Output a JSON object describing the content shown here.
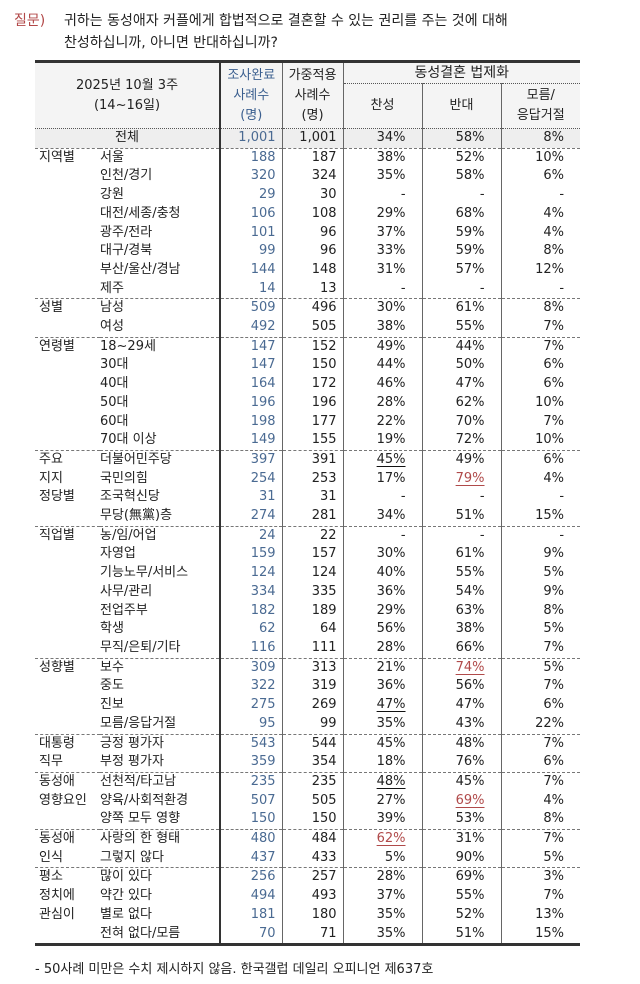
{
  "question": {
    "label": "질문)",
    "line1": "귀하는 동성애자 커플에게 합법적으로 결혼할 수 있는 권리를 주는 것에 대해",
    "line2": "찬성하십니까, 아니면 반대하십니까?"
  },
  "header": {
    "period_line1": "2025년 10월 3주",
    "period_line2": "(14~16일)",
    "col1": [
      "조사완료",
      "사례수",
      "(명)"
    ],
    "col2": [
      "가중적용",
      "사례수",
      "(명)"
    ],
    "group": "동성결혼 법제화",
    "favor": "찬성",
    "oppose": "반대",
    "dk": [
      "모름/",
      "응답거절"
    ]
  },
  "colors": {
    "sample_count": "#4a6a92",
    "question_label": "#b24848",
    "highlight_red": "#b04a4a"
  },
  "total": {
    "label": "전체",
    "n": "1,001",
    "w": "1,001",
    "favor": "34%",
    "oppose": "58%",
    "dk": "8%"
  },
  "groups": [
    {
      "label": [
        "지역별"
      ],
      "rows": [
        {
          "label": "서울",
          "n": "188",
          "w": "187",
          "favor": "38%",
          "oppose": "52%",
          "dk": "10%"
        },
        {
          "label": "인천/경기",
          "n": "320",
          "w": "324",
          "favor": "35%",
          "oppose": "58%",
          "dk": "6%"
        },
        {
          "label": "강원",
          "n": "29",
          "w": "30",
          "favor": "-",
          "oppose": "-",
          "dk": "-"
        },
        {
          "label": "대전/세종/충청",
          "n": "106",
          "w": "108",
          "favor": "29%",
          "oppose": "68%",
          "dk": "4%"
        },
        {
          "label": "광주/전라",
          "n": "101",
          "w": "96",
          "favor": "37%",
          "oppose": "59%",
          "dk": "4%"
        },
        {
          "label": "대구/경북",
          "n": "99",
          "w": "96",
          "favor": "33%",
          "oppose": "59%",
          "dk": "8%"
        },
        {
          "label": "부산/울산/경남",
          "n": "144",
          "w": "148",
          "favor": "31%",
          "oppose": "57%",
          "dk": "12%"
        },
        {
          "label": "제주",
          "n": "14",
          "w": "13",
          "favor": "-",
          "oppose": "-",
          "dk": "-"
        }
      ]
    },
    {
      "label": [
        "성별"
      ],
      "rows": [
        {
          "label": "남성",
          "n": "509",
          "w": "496",
          "favor": "30%",
          "oppose": "61%",
          "dk": "8%"
        },
        {
          "label": "여성",
          "n": "492",
          "w": "505",
          "favor": "38%",
          "oppose": "55%",
          "dk": "7%"
        }
      ]
    },
    {
      "label": [
        "연령별"
      ],
      "rows": [
        {
          "label": "18~29세",
          "n": "147",
          "w": "152",
          "favor": "49%",
          "oppose": "44%",
          "dk": "7%"
        },
        {
          "label": "30대",
          "n": "147",
          "w": "150",
          "favor": "44%",
          "oppose": "50%",
          "dk": "6%"
        },
        {
          "label": "40대",
          "n": "164",
          "w": "172",
          "favor": "46%",
          "oppose": "47%",
          "dk": "6%"
        },
        {
          "label": "50대",
          "n": "196",
          "w": "196",
          "favor": "28%",
          "oppose": "62%",
          "dk": "10%"
        },
        {
          "label": "60대",
          "n": "198",
          "w": "177",
          "favor": "22%",
          "oppose": "70%",
          "dk": "7%"
        },
        {
          "label": "70대 이상",
          "n": "149",
          "w": "155",
          "favor": "19%",
          "oppose": "72%",
          "dk": "10%"
        }
      ]
    },
    {
      "label": [
        "주요",
        "지지",
        "정당별"
      ],
      "rows": [
        {
          "label": "더불어민주당",
          "n": "397",
          "w": "391",
          "favor": "45%",
          "oppose": "49%",
          "dk": "6%",
          "mark": {
            "favor": "ub"
          }
        },
        {
          "label": "국민의힘",
          "n": "254",
          "w": "253",
          "favor": "17%",
          "oppose": "79%",
          "dk": "4%",
          "mark": {
            "oppose": "ur"
          }
        },
        {
          "label": "조국혁신당",
          "n": "31",
          "w": "31",
          "favor": "-",
          "oppose": "-",
          "dk": "-"
        },
        {
          "label": "무당(無黨)층",
          "n": "274",
          "w": "281",
          "favor": "34%",
          "oppose": "51%",
          "dk": "15%"
        }
      ]
    },
    {
      "label": [
        "직업별"
      ],
      "rows": [
        {
          "label": "농/임/어업",
          "n": "24",
          "w": "22",
          "favor": "-",
          "oppose": "-",
          "dk": "-"
        },
        {
          "label": "자영업",
          "n": "159",
          "w": "157",
          "favor": "30%",
          "oppose": "61%",
          "dk": "9%"
        },
        {
          "label": "기능노무/서비스",
          "n": "124",
          "w": "124",
          "favor": "40%",
          "oppose": "55%",
          "dk": "5%"
        },
        {
          "label": "사무/관리",
          "n": "334",
          "w": "335",
          "favor": "36%",
          "oppose": "54%",
          "dk": "9%"
        },
        {
          "label": "전업주부",
          "n": "182",
          "w": "189",
          "favor": "29%",
          "oppose": "63%",
          "dk": "8%"
        },
        {
          "label": "학생",
          "n": "62",
          "w": "64",
          "favor": "56%",
          "oppose": "38%",
          "dk": "5%"
        },
        {
          "label": "무직/은퇴/기타",
          "n": "116",
          "w": "111",
          "favor": "28%",
          "oppose": "66%",
          "dk": "7%"
        }
      ]
    },
    {
      "label": [
        "성향별"
      ],
      "rows": [
        {
          "label": "보수",
          "n": "309",
          "w": "313",
          "favor": "21%",
          "oppose": "74%",
          "dk": "5%",
          "mark": {
            "oppose": "ur"
          }
        },
        {
          "label": "중도",
          "n": "322",
          "w": "319",
          "favor": "36%",
          "oppose": "56%",
          "dk": "7%"
        },
        {
          "label": "진보",
          "n": "275",
          "w": "269",
          "favor": "47%",
          "oppose": "47%",
          "dk": "6%",
          "mark": {
            "favor": "ub"
          }
        },
        {
          "label": "모름/응답거절",
          "n": "95",
          "w": "99",
          "favor": "35%",
          "oppose": "43%",
          "dk": "22%"
        }
      ]
    },
    {
      "label": [
        "대통령",
        "직무"
      ],
      "rows": [
        {
          "label": "긍정 평가자",
          "n": "543",
          "w": "544",
          "favor": "45%",
          "oppose": "48%",
          "dk": "7%"
        },
        {
          "label": "부정 평가자",
          "n": "359",
          "w": "354",
          "favor": "18%",
          "oppose": "76%",
          "dk": "6%"
        }
      ]
    },
    {
      "label": [
        "동성애",
        "영향요인"
      ],
      "rows": [
        {
          "label": "선천적/타고남",
          "n": "235",
          "w": "235",
          "favor": "48%",
          "oppose": "45%",
          "dk": "7%",
          "mark": {
            "favor": "ub"
          }
        },
        {
          "label": "양육/사회적환경",
          "n": "507",
          "w": "505",
          "favor": "27%",
          "oppose": "69%",
          "dk": "4%",
          "mark": {
            "oppose": "ur"
          }
        },
        {
          "label": "양쪽 모두 영향",
          "n": "150",
          "w": "150",
          "favor": "39%",
          "oppose": "53%",
          "dk": "8%"
        }
      ]
    },
    {
      "label": [
        "동성애",
        "인식"
      ],
      "rows": [
        {
          "label": "사랑의 한 형태",
          "n": "480",
          "w": "484",
          "favor": "62%",
          "oppose": "31%",
          "dk": "7%",
          "mark": {
            "favor": "ur"
          }
        },
        {
          "label": "그렇지 않다",
          "n": "437",
          "w": "433",
          "favor": "5%",
          "oppose": "90%",
          "dk": "5%"
        }
      ]
    },
    {
      "label": [
        "평소",
        "정치에",
        "관심이"
      ],
      "rows": [
        {
          "label": "많이 있다",
          "n": "256",
          "w": "257",
          "favor": "28%",
          "oppose": "69%",
          "dk": "3%"
        },
        {
          "label": "약간 있다",
          "n": "494",
          "w": "493",
          "favor": "37%",
          "oppose": "55%",
          "dk": "7%"
        },
        {
          "label": "별로 없다",
          "n": "181",
          "w": "180",
          "favor": "35%",
          "oppose": "52%",
          "dk": "13%"
        },
        {
          "label": "전혀 없다/모름",
          "n": "70",
          "w": "71",
          "favor": "35%",
          "oppose": "51%",
          "dk": "15%"
        }
      ]
    }
  ],
  "footnote": "- 50사례 미만은 수치 제시하지 않음. 한국갤럽 데일리 오피니언 제637호"
}
